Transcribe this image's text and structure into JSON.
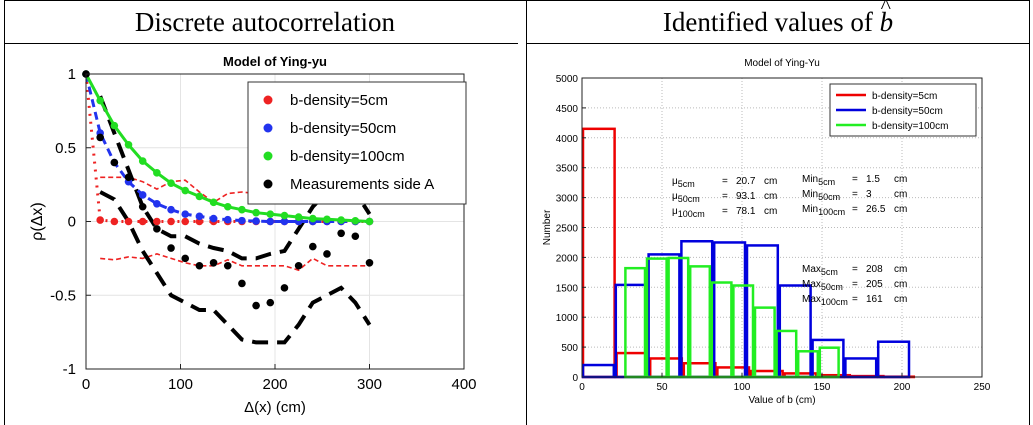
{
  "headers": {
    "left": "Discrete autocorrelation",
    "right_prefix": "Identified values of ",
    "right_symbol": "b"
  },
  "chart_data": [
    {
      "type": "scatter",
      "title": "Model of Ying-yu",
      "xlabel": "Δ(x) (cm)",
      "ylabel": "ρ(Δx)",
      "xlim": [
        0,
        400
      ],
      "ylim": [
        -1,
        1
      ],
      "xticks": [
        "0",
        "100",
        "200",
        "300",
        "400"
      ],
      "yticks": [
        "1",
        "0.5",
        "0",
        "-0.5",
        "-1"
      ],
      "grid": true,
      "legend_placement": "top-right",
      "series": [
        {
          "name": "b-density=5cm",
          "color": "#ee2222",
          "marker": "circle",
          "line": "dotted",
          "x": [
            0,
            15,
            30,
            45,
            60,
            75,
            90,
            105,
            120,
            135,
            150,
            165,
            180,
            195,
            210,
            225,
            240,
            255,
            270,
            285,
            300
          ],
          "y": [
            1,
            0.01,
            0.0,
            0.0,
            0.0,
            0.0,
            0.0,
            0.0,
            0.0,
            0.0,
            0.0,
            0.0,
            0.0,
            0.0,
            0.0,
            0.0,
            0.0,
            0.0,
            0.0,
            0.0,
            0.0
          ]
        },
        {
          "name": "b-density=50cm",
          "color": "#2233ee",
          "marker": "circle",
          "line": "dashed",
          "x": [
            0,
            15,
            30,
            45,
            60,
            75,
            90,
            105,
            120,
            135,
            150,
            165,
            180,
            195,
            210,
            225,
            240,
            255,
            270,
            285,
            300
          ],
          "y": [
            1,
            0.6,
            0.4,
            0.27,
            0.18,
            0.12,
            0.08,
            0.05,
            0.035,
            0.02,
            0.012,
            0.006,
            0.003,
            0.0,
            0.0,
            0.0,
            0.0,
            0.0,
            0.0,
            0.0,
            0.0
          ]
        },
        {
          "name": "b-density=100cm",
          "color": "#22dd22",
          "marker": "circle",
          "line": "solid",
          "x": [
            0,
            15,
            30,
            45,
            60,
            75,
            90,
            105,
            120,
            135,
            150,
            165,
            180,
            195,
            210,
            225,
            240,
            255,
            270,
            285,
            300
          ],
          "y": [
            1,
            0.82,
            0.65,
            0.52,
            0.41,
            0.33,
            0.26,
            0.21,
            0.17,
            0.13,
            0.1,
            0.08,
            0.06,
            0.05,
            0.04,
            0.03,
            0.02,
            0.015,
            0.01,
            0.005,
            0.0
          ]
        },
        {
          "name": "Measurements side A",
          "color": "#000000",
          "marker": "circle",
          "line": "none",
          "x": [
            0,
            15,
            30,
            45,
            60,
            75,
            90,
            105,
            120,
            135,
            150,
            165,
            180,
            195,
            210,
            225,
            240,
            255,
            270,
            285,
            300
          ],
          "y": [
            1,
            0.57,
            0.4,
            0.3,
            0.1,
            -0.05,
            -0.18,
            -0.25,
            -0.3,
            -0.28,
            -0.3,
            -0.42,
            -0.57,
            -0.55,
            -0.45,
            -0.3,
            -0.17,
            -0.22,
            -0.08,
            -0.1,
            -0.28
          ]
        }
      ],
      "confidence_bands": [
        {
          "color": "#ee2222",
          "style": "dashed",
          "x": [
            15,
            30,
            45,
            60,
            75,
            90,
            105,
            120,
            135,
            150,
            165,
            180,
            195,
            210,
            225,
            240,
            255,
            270,
            285,
            300
          ],
          "upper": [
            0.3,
            0.3,
            0.3,
            0.27,
            0.22,
            0.27,
            0.28,
            0.2,
            0.13,
            0.19,
            0.2,
            0.19,
            0.2,
            0.2,
            0.2,
            0.18,
            0.2,
            0.2,
            0.24,
            0.27
          ],
          "lower": [
            -0.25,
            -0.26,
            -0.24,
            -0.25,
            -0.22,
            -0.25,
            -0.28,
            -0.3,
            -0.3,
            -0.26,
            -0.3,
            -0.3,
            -0.3,
            -0.3,
            -0.33,
            -0.25,
            -0.3,
            -0.3,
            -0.3,
            -0.3
          ]
        },
        {
          "color": "#000000",
          "style": "dashed",
          "x": [
            15,
            30,
            45,
            60,
            75,
            90,
            105,
            120,
            135,
            150,
            165,
            180,
            195,
            210,
            225,
            240,
            255,
            270,
            285,
            300
          ],
          "upper": [
            0.85,
            0.6,
            0.35,
            0.1,
            -0.05,
            -0.1,
            -0.1,
            -0.15,
            -0.18,
            -0.2,
            -0.25,
            -0.25,
            -0.22,
            -0.2,
            -0.05,
            0.1,
            0.2,
            0.25,
            0.2,
            0.05
          ],
          "lower": [
            0.2,
            0.15,
            0.0,
            -0.2,
            -0.35,
            -0.5,
            -0.55,
            -0.6,
            -0.6,
            -0.7,
            -0.8,
            -0.82,
            -0.82,
            -0.82,
            -0.7,
            -0.55,
            -0.5,
            -0.45,
            -0.55,
            -0.7
          ]
        }
      ]
    },
    {
      "type": "bar",
      "title": "Model of Ying-Yu",
      "xlabel": "Value of b (cm)",
      "ylabel": "Number",
      "xlim": [
        0,
        250
      ],
      "ylim": [
        0,
        5000
      ],
      "xticks": [
        "0",
        "50",
        "100",
        "150",
        "200",
        "250"
      ],
      "yticks": [
        "5000",
        "4500",
        "4000",
        "3500",
        "3000",
        "2500",
        "2000",
        "1500",
        "1000",
        "500",
        "0"
      ],
      "grid": true,
      "legend_placement": "top-right",
      "series": [
        {
          "name": "b-density=5cm",
          "color": "#ee0000",
          "bin_edges": [
            0,
            21,
            42,
            63,
            84,
            105,
            126,
            147,
            168,
            189,
            208
          ],
          "counts": [
            4150,
            400,
            310,
            230,
            160,
            100,
            60,
            30,
            15,
            5
          ]
        },
        {
          "name": "b-density=50cm",
          "color": "#0000dd",
          "bin_edges": [
            0,
            20.5,
            41,
            61.5,
            82,
            102.5,
            123,
            143.5,
            164,
            184.5,
            205
          ],
          "counts": [
            200,
            1540,
            2050,
            2270,
            2250,
            2200,
            1530,
            620,
            310,
            590
          ]
        },
        {
          "name": "b-density=100cm",
          "color": "#22ee22",
          "bin_edges": [
            26.5,
            40,
            53.5,
            67,
            80.5,
            94,
            107.5,
            121,
            134.5,
            148,
            161
          ],
          "counts": [
            1820,
            1980,
            1990,
            1850,
            1580,
            1530,
            1160,
            770,
            430,
            490
          ]
        }
      ],
      "annotations": [
        {
          "base": "μ",
          "sub": "5cm",
          "eq": "=",
          "value": "20.7",
          "unit": "cm"
        },
        {
          "base": "μ",
          "sub": "50cm",
          "eq": "=",
          "value": "93.1",
          "unit": "cm"
        },
        {
          "base": "μ",
          "sub": "100cm",
          "eq": "=",
          "value": "78.1",
          "unit": "cm"
        },
        {
          "base": "Min",
          "sub": "5cm",
          "eq": "=",
          "value": "1.5",
          "unit": "cm"
        },
        {
          "base": "Min",
          "sub": "50cm",
          "eq": "=",
          "value": "3",
          "unit": "cm"
        },
        {
          "base": "Min",
          "sub": "100cm",
          "eq": "=",
          "value": "26.5",
          "unit": "cm"
        },
        {
          "base": "Max",
          "sub": "5cm",
          "eq": "=",
          "value": "208",
          "unit": "cm"
        },
        {
          "base": "Max",
          "sub": "50cm",
          "eq": "=",
          "value": "205",
          "unit": "cm"
        },
        {
          "base": "Max",
          "sub": "100cm",
          "eq": "=",
          "value": "161",
          "unit": "cm"
        }
      ]
    }
  ]
}
